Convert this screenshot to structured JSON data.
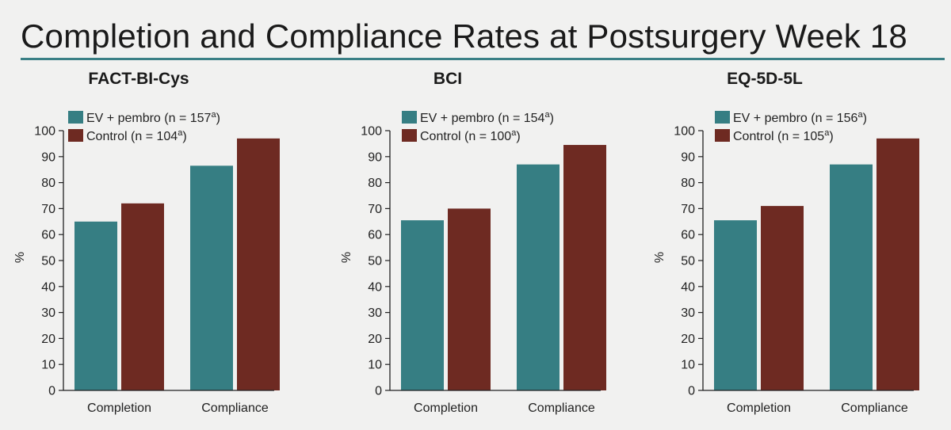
{
  "title": "Completion and Compliance Rates at Postsurgery Week 18",
  "colors": {
    "ev": "#367e83",
    "control": "#6e2a22",
    "axis": "#222222",
    "rule": "#3a7f85"
  },
  "chart_data": [
    {
      "type": "bar",
      "title": "FACT-BI-Cys",
      "ylabel": "%",
      "ylim": [
        0,
        100
      ],
      "yticks": [
        "0",
        "10",
        "20",
        "30",
        "40",
        "50",
        "60",
        "70",
        "80",
        "90",
        "100"
      ],
      "categories": [
        "Completion",
        "Compliance"
      ],
      "legend_position": "top-left",
      "series": [
        {
          "name": "EV + pembro (n = 157",
          "sup": "a",
          "close": ")",
          "values": [
            65,
            86.5
          ]
        },
        {
          "name": "Control (n = 104",
          "sup": "a",
          "close": ")",
          "values": [
            72,
            97
          ]
        }
      ]
    },
    {
      "type": "bar",
      "title": "BCI",
      "ylabel": "%",
      "ylim": [
        0,
        100
      ],
      "yticks": [
        "0",
        "10",
        "20",
        "30",
        "40",
        "50",
        "60",
        "70",
        "80",
        "90",
        "100"
      ],
      "categories": [
        "Completion",
        "Compliance"
      ],
      "legend_position": "top-left",
      "series": [
        {
          "name": "EV + pembro (n = 154",
          "sup": "a",
          "close": ")",
          "values": [
            65.5,
            87
          ]
        },
        {
          "name": "Control (n = 100",
          "sup": "a",
          "close": ")",
          "values": [
            70,
            94.5
          ]
        }
      ]
    },
    {
      "type": "bar",
      "title": "EQ-5D-5L",
      "ylabel": "%",
      "ylim": [
        0,
        100
      ],
      "yticks": [
        "0",
        "10",
        "20",
        "30",
        "40",
        "50",
        "60",
        "70",
        "80",
        "90",
        "100"
      ],
      "categories": [
        "Completion",
        "Compliance"
      ],
      "legend_position": "top-left",
      "series": [
        {
          "name": "EV + pembro (n = 156",
          "sup": "a",
          "close": ")",
          "values": [
            65.5,
            87
          ]
        },
        {
          "name": "Control (n = 105",
          "sup": "a",
          "close": ")",
          "values": [
            71,
            97
          ]
        }
      ]
    }
  ]
}
